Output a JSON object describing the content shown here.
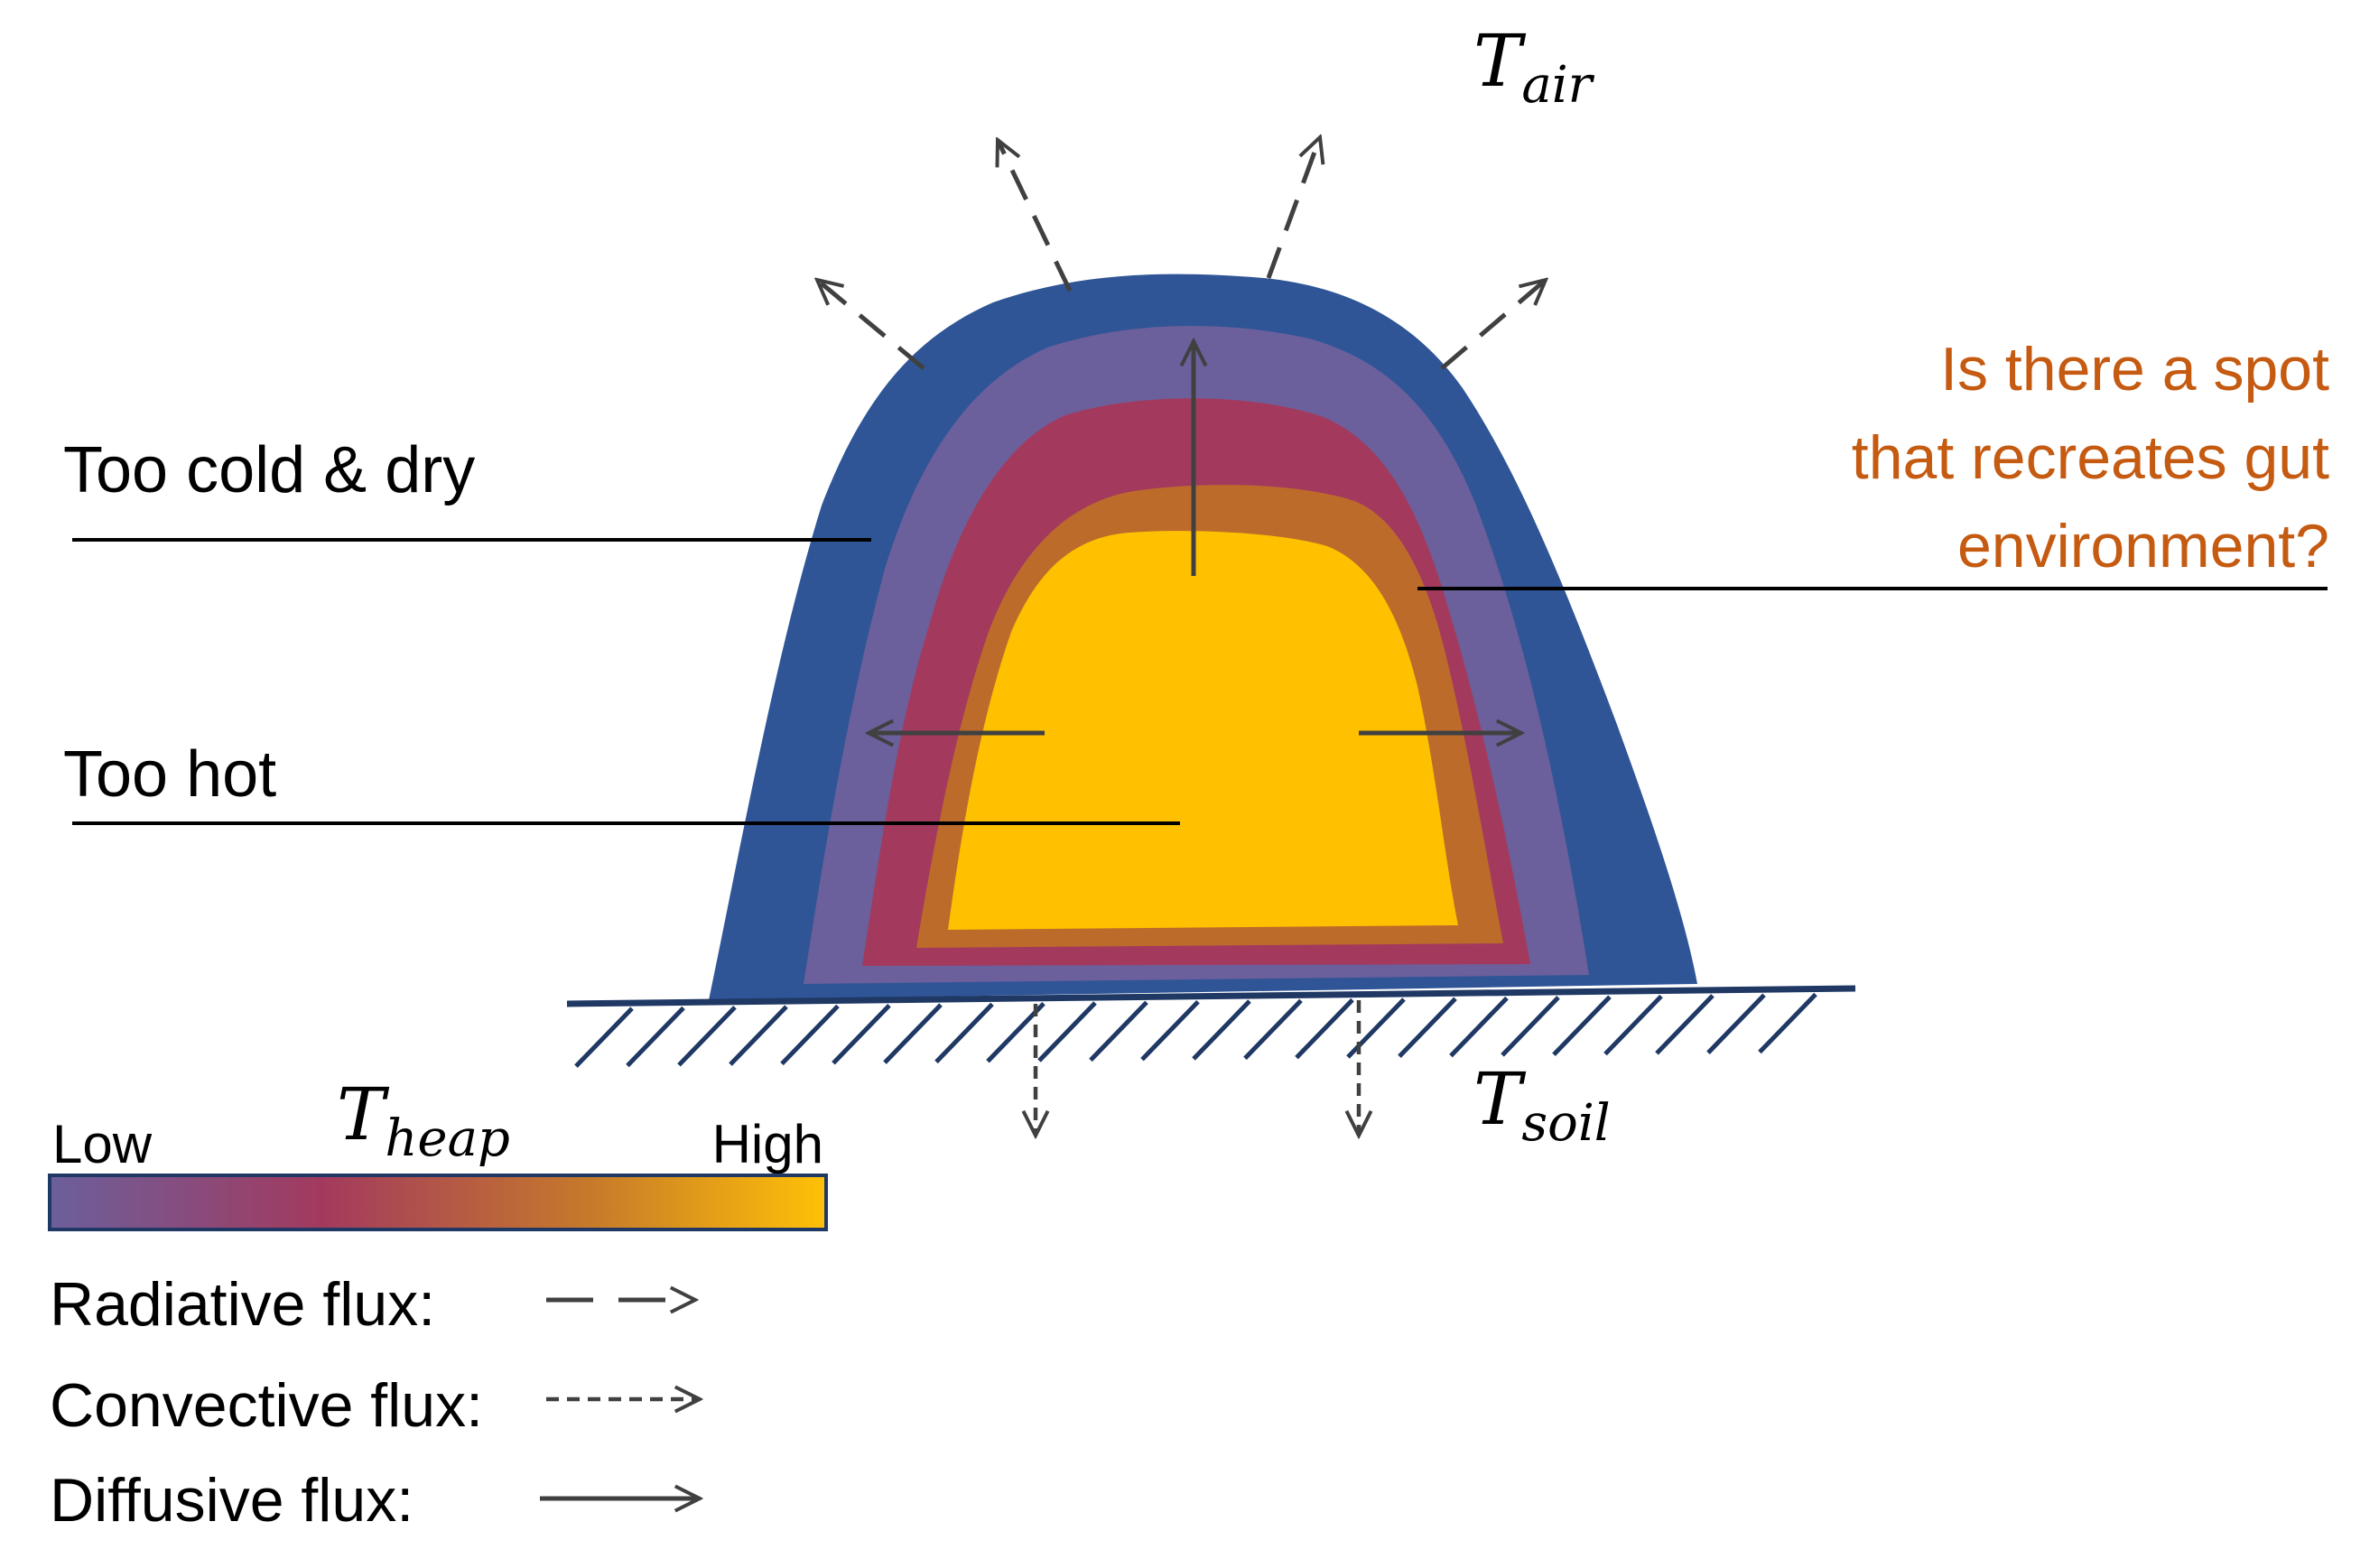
{
  "labels": {
    "too_cold": "Too cold & dry",
    "too_hot": "Too hot",
    "question_line1": "Is there a spot",
    "question_line2": "that recreates gut",
    "question_line3": "environment?"
  },
  "temperatures": {
    "air_main": "T",
    "air_sub": "air",
    "soil_main": "T",
    "soil_sub": "soil",
    "heap_main": "T",
    "heap_sub": "heap"
  },
  "colorbar": {
    "low": "Low",
    "high": "High",
    "stops": [
      "#6b5f9c",
      "#a33a5e",
      "#c77a2a",
      "#ffc107"
    ]
  },
  "legend": {
    "radiative": "Radiative flux:",
    "convective": "Convective flux:",
    "diffusive": "Diffusive flux:"
  },
  "colors": {
    "outer_layer": "#2f5597",
    "layer2": "#6b5f9c",
    "layer3": "#a33a5e",
    "layer4": "#bd6b2a",
    "core": "#ffc000",
    "question_text": "#c55a11",
    "arrow": "#404040",
    "ground": "#1f3864"
  }
}
